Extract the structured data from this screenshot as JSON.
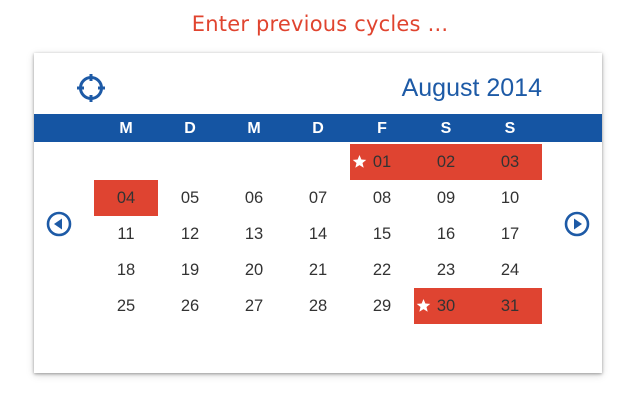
{
  "headline": "Enter previous cycles ...",
  "calendar": {
    "month_title": "August 2014",
    "weekdays": [
      "M",
      "D",
      "M",
      "D",
      "F",
      "S",
      "S"
    ],
    "weeks": [
      [
        {
          "day": ""
        },
        {
          "day": ""
        },
        {
          "day": ""
        },
        {
          "day": ""
        },
        {
          "day": "01",
          "selected": true,
          "starred": true
        },
        {
          "day": "02",
          "selected": true
        },
        {
          "day": "03",
          "selected": true
        }
      ],
      [
        {
          "day": "04",
          "selected": true
        },
        {
          "day": "05"
        },
        {
          "day": "06"
        },
        {
          "day": "07"
        },
        {
          "day": "08"
        },
        {
          "day": "09"
        },
        {
          "day": "10"
        }
      ],
      [
        {
          "day": "11"
        },
        {
          "day": "12"
        },
        {
          "day": "13"
        },
        {
          "day": "14"
        },
        {
          "day": "15"
        },
        {
          "day": "16"
        },
        {
          "day": "17"
        }
      ],
      [
        {
          "day": "18"
        },
        {
          "day": "19"
        },
        {
          "day": "20"
        },
        {
          "day": "21"
        },
        {
          "day": "22"
        },
        {
          "day": "23"
        },
        {
          "day": "24"
        }
      ],
      [
        {
          "day": "25"
        },
        {
          "day": "26"
        },
        {
          "day": "27"
        },
        {
          "day": "28"
        },
        {
          "day": "29"
        },
        {
          "day": "30",
          "selected": true,
          "starred": true
        },
        {
          "day": "31",
          "selected": true
        }
      ]
    ]
  },
  "icons": {
    "locate": "crosshair-icon",
    "prev": "arrow-left-circle-icon",
    "next": "arrow-right-circle-icon",
    "cycle_start": "star-icon"
  },
  "colors": {
    "accent_red": "#df4431",
    "header_blue": "#1555a3",
    "title_blue": "#1d5aa6",
    "headline_red": "#e0442f"
  }
}
